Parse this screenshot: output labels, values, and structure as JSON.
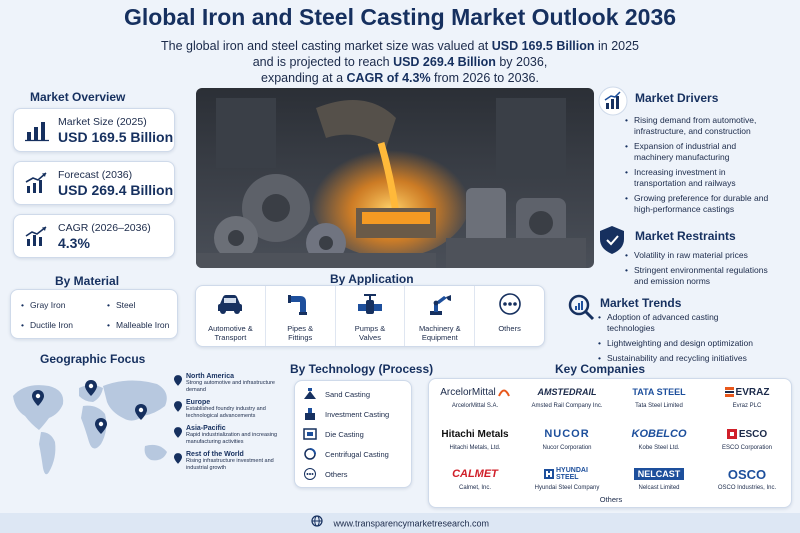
{
  "header": {
    "title": "Global Iron and Steel Casting Market Outlook 2036",
    "intro_line1_a": "The global iron and steel casting market size was valued at ",
    "intro_line1_b": "USD 169.5 Billion",
    "intro_line1_c": " in 2025",
    "intro_line2_a": "and is projected to reach ",
    "intro_line2_b": "USD 269.4 Billion",
    "intro_line2_c": " by 2036,",
    "intro_line3_a": "expanding at a ",
    "intro_line3_b": "CAGR of 4.3%",
    "intro_line3_c": " from 2026 to 2036."
  },
  "overview": {
    "title": "Market Overview",
    "cards": [
      {
        "label": "Market Size (2025)",
        "value": "USD 169.5 Billion",
        "icon": "bar-chart-icon"
      },
      {
        "label": "Forecast (2036)",
        "value": "USD 269.4 Billion",
        "icon": "trend-chart-icon"
      },
      {
        "label": "CAGR (2026–2036)",
        "value": "4.3%",
        "icon": "growth-chart-icon"
      }
    ]
  },
  "material": {
    "title": "By Material",
    "items": [
      "Gray Iron",
      "Steel",
      "Ductile Iron",
      "Malleable Iron"
    ]
  },
  "geo": {
    "title": "Geographic Focus",
    "regions": [
      {
        "name": "North America",
        "desc": "Strong automotive and infrastructure demand"
      },
      {
        "name": "Europe",
        "desc": "Established foundry industry and technological advancements"
      },
      {
        "name": "Asia-Pacific",
        "desc": "Rapid industrialization and increasing manufacturing activities"
      },
      {
        "name": "Rest of the World",
        "desc": "Rising infrastructure investment and industrial growth"
      }
    ]
  },
  "application": {
    "title": "By Application",
    "items": [
      {
        "label": "Automotive &",
        "label2": "Transport",
        "icon": "car-icon"
      },
      {
        "label": "Pipes &",
        "label2": "Fittings",
        "icon": "pipe-icon"
      },
      {
        "label": "Pumps &",
        "label2": "Valves",
        "icon": "valve-icon"
      },
      {
        "label": "Machinery &",
        "label2": "Equipment",
        "icon": "robot-arm-icon"
      },
      {
        "label": "Others",
        "label2": "",
        "icon": "more-icon"
      }
    ]
  },
  "technology": {
    "title": "By Technology (Process)",
    "items": [
      "Sand Casting",
      "Investment Casting",
      "Die Casting",
      "Centrifugal Casting",
      "Others"
    ]
  },
  "drivers": {
    "title": "Market Drivers",
    "items": [
      "Rising demand from automotive, infrastructure, and construction",
      "Expansion of industrial and machinery manufacturing",
      "Increasing investment in transportation and railways",
      "Growing preference for durable and high-performance castings"
    ]
  },
  "restraints": {
    "title": "Market Restraints",
    "items": [
      "Volatility in raw material prices",
      "Stringent environmental regulations and emission norms"
    ]
  },
  "trends": {
    "title": "Market Trends",
    "items": [
      "Adoption of advanced casting technologies",
      "Lightweighting and design optimization",
      "Sustainability and recycling initiatives"
    ]
  },
  "companies": {
    "title": "Key Companies",
    "items": [
      {
        "logo": "ArcelorMittal",
        "name": "ArcelorMittal S.A.",
        "color": "#1b2a4a"
      },
      {
        "logo": "AMSTEDRAIL",
        "name": "Amsted Rail Company Inc.",
        "color": "#1b2a4a"
      },
      {
        "logo": "TATA STEEL",
        "name": "Tata Steel Limited",
        "color": "#1d4f9c"
      },
      {
        "logo": "EVRAZ",
        "name": "Evraz PLC",
        "color": "#1b2a4a"
      },
      {
        "logo": "Hitachi Metals",
        "name": "Hitachi Metals, Ltd.",
        "color": "#111111"
      },
      {
        "logo": "NUCOR",
        "name": "Nucor Corporation",
        "color": "#1d4f9c"
      },
      {
        "logo": "KOBELCO",
        "name": "Kobe Steel Ltd.",
        "color": "#1d4f9c"
      },
      {
        "logo": "ESCO",
        "name": "ESCO Corporation",
        "color": "#1b2a4a"
      },
      {
        "logo": "CALMET",
        "name": "Calmet, Inc.",
        "color": "#d0202a"
      },
      {
        "logo": "HYUNDAI STEEL",
        "name": "Hyundai Steel Company",
        "color": "#1d4f9c"
      },
      {
        "logo": "NELCAST",
        "name": "Nelcast Limited",
        "color": "#1d4f9c"
      },
      {
        "logo": "OSCO",
        "name": "OSCO Industries, Inc.",
        "color": "#1d4f9c"
      }
    ],
    "others": "Others"
  },
  "footer": {
    "url": "www.transparencymarketresearch.com"
  },
  "colors": {
    "navy": "#16305f",
    "accent_blue": "#1d4f9c",
    "background": "#eef3fa"
  }
}
